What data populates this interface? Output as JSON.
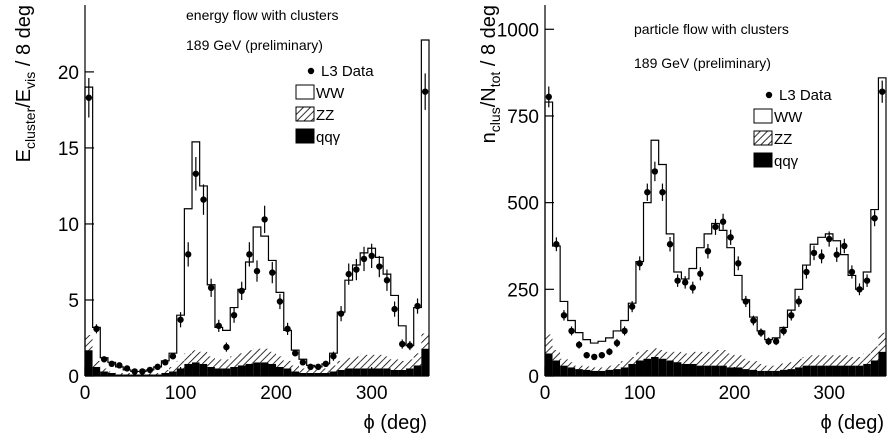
{
  "chart_data": [
    {
      "type": "histogram",
      "annotations": [
        "energy flow with clusters",
        "189 GeV (preliminary)"
      ],
      "ylabel": [
        "E",
        "cluster",
        "/E",
        "vis",
        " / 8 deg"
      ],
      "xlabel": "ϕ (deg)",
      "xlim": [
        0,
        360
      ],
      "xticks": [
        0,
        100,
        200,
        300
      ],
      "ylim": [
        0,
        24.4
      ],
      "yticks": [
        0,
        5,
        10,
        15,
        20
      ],
      "bins": [
        0,
        8,
        16,
        24,
        32,
        40,
        48,
        56,
        64,
        72,
        80,
        88,
        96,
        104,
        112,
        120,
        128,
        136,
        144,
        152,
        160,
        168,
        176,
        184,
        192,
        200,
        208,
        216,
        224,
        232,
        240,
        248,
        256,
        264,
        272,
        280,
        288,
        296,
        304,
        312,
        320,
        328,
        336,
        344,
        352,
        360
      ],
      "series": [
        {
          "name": "L3 Data",
          "style": "points",
          "color": "#000000",
          "values": [
            18.3,
            3.1,
            1.1,
            0.8,
            0.7,
            0.5,
            0.3,
            0.3,
            0.4,
            0.6,
            0.9,
            1.3,
            3.7,
            8.0,
            13.3,
            11.6,
            5.8,
            3.3,
            1.9,
            4.0,
            5.6,
            8.0,
            6.9,
            10.3,
            6.8,
            4.9,
            3.1,
            1.5,
            0.9,
            0.6,
            0.6,
            0.8,
            1.3,
            4.1,
            6.7,
            7.0,
            7.7,
            7.9,
            7.2,
            6.3,
            4.4,
            2.1,
            2.0,
            4.6,
            18.7
          ],
          "errors": [
            1.3,
            0.3,
            0.15,
            0.12,
            0.1,
            0.1,
            0.08,
            0.08,
            0.08,
            0.1,
            0.15,
            0.2,
            0.5,
            0.8,
            1.1,
            1.0,
            0.6,
            0.4,
            0.3,
            0.5,
            0.6,
            0.8,
            0.7,
            0.9,
            0.7,
            0.5,
            0.4,
            0.2,
            0.15,
            0.1,
            0.1,
            0.15,
            0.3,
            0.5,
            0.7,
            0.7,
            0.8,
            0.8,
            0.7,
            0.7,
            0.5,
            0.3,
            0.3,
            0.5,
            1.2
          ]
        },
        {
          "name": "WW",
          "style": "outline",
          "color": "#ffffff",
          "values": [
            16.3,
            2.2,
            0.7,
            0.6,
            0.4,
            0.2,
            0.1,
            0.1,
            0.2,
            0.4,
            0.6,
            0.9,
            3.0,
            9.5,
            13.7,
            10.9,
            4.7,
            2.1,
            1.9,
            3.2,
            4.2,
            5.8,
            8.0,
            7.4,
            6.0,
            4.2,
            2.0,
            1.0,
            0.6,
            0.3,
            0.2,
            0.3,
            0.8,
            3.2,
            5.1,
            6.0,
            6.7,
            7.0,
            6.4,
            5.4,
            4.2,
            2.3,
            0.9,
            3.0,
            19.3
          ]
        },
        {
          "name": "ZZ",
          "style": "hatch",
          "color": "#000000",
          "values": [
            1.0,
            0.4,
            0.2,
            0.1,
            0.1,
            0.1,
            0.1,
            0.1,
            0.1,
            0.1,
            0.2,
            0.3,
            0.5,
            0.7,
            0.8,
            0.8,
            0.7,
            0.6,
            0.6,
            0.7,
            0.8,
            0.9,
            0.9,
            0.9,
            0.8,
            0.7,
            0.5,
            0.4,
            0.3,
            0.2,
            0.2,
            0.3,
            0.4,
            0.6,
            0.7,
            0.8,
            0.9,
            0.9,
            0.9,
            0.8,
            0.7,
            0.6,
            0.6,
            0.8,
            1.0
          ]
        },
        {
          "name": "qqγ",
          "style": "solid",
          "color": "#000000",
          "values": [
            1.7,
            0.6,
            0.3,
            0.2,
            0.1,
            0.1,
            0.1,
            0.1,
            0.1,
            0.1,
            0.2,
            0.3,
            0.5,
            0.8,
            0.9,
            0.8,
            0.6,
            0.5,
            0.5,
            0.6,
            0.7,
            0.8,
            0.9,
            0.9,
            0.8,
            0.6,
            0.5,
            0.3,
            0.2,
            0.2,
            0.2,
            0.2,
            0.3,
            0.4,
            0.5,
            0.5,
            0.5,
            0.5,
            0.5,
            0.5,
            0.4,
            0.4,
            0.5,
            0.7,
            1.8
          ]
        }
      ]
    },
    {
      "type": "histogram",
      "annotations": [
        "particle flow with clusters",
        "189 GeV (preliminary)"
      ],
      "ylabel": [
        "n",
        "clus",
        "/N",
        "tot",
        " / 8 deg"
      ],
      "xlabel": "ϕ (deg)",
      "xlim": [
        0,
        360
      ],
      "xticks": [
        0,
        100,
        200,
        300
      ],
      "ylim": [
        0,
        1070
      ],
      "yticks": [
        0,
        250,
        500,
        750,
        1000
      ],
      "bins": [
        0,
        8,
        16,
        24,
        32,
        40,
        48,
        56,
        64,
        72,
        80,
        88,
        96,
        104,
        112,
        120,
        128,
        136,
        144,
        152,
        160,
        168,
        176,
        184,
        192,
        200,
        208,
        216,
        224,
        232,
        240,
        248,
        256,
        264,
        272,
        280,
        288,
        296,
        304,
        312,
        320,
        328,
        336,
        344,
        352,
        360
      ],
      "series": [
        {
          "name": "L3 Data",
          "style": "points",
          "color": "#000000",
          "values": [
            805,
            380,
            175,
            130,
            90,
            60,
            55,
            60,
            70,
            95,
            130,
            200,
            325,
            530,
            590,
            530,
            380,
            275,
            270,
            255,
            295,
            360,
            430,
            445,
            400,
            325,
            215,
            160,
            125,
            100,
            100,
            130,
            175,
            215,
            300,
            355,
            345,
            395,
            350,
            375,
            300,
            250,
            275,
            455,
            820
          ],
          "errors": [
            30,
            20,
            15,
            13,
            11,
            9,
            9,
            9,
            10,
            12,
            13,
            16,
            20,
            25,
            28,
            25,
            21,
            18,
            18,
            17,
            19,
            21,
            23,
            23,
            22,
            20,
            16,
            14,
            12,
            11,
            11,
            13,
            15,
            16,
            19,
            21,
            20,
            22,
            21,
            21,
            19,
            17,
            18,
            23,
            32
          ]
        },
        {
          "name": "WW",
          "style": "outline",
          "color": "#ffffff",
          "values": [
            670,
            300,
            165,
            120,
            95,
            77,
            70,
            75,
            80,
            95,
            117,
            155,
            260,
            425,
            600,
            535,
            340,
            230,
            215,
            240,
            300,
            340,
            365,
            345,
            305,
            230,
            170,
            127,
            95,
            75,
            80,
            104,
            150,
            200,
            265,
            320,
            340,
            350,
            330,
            290,
            235,
            195,
            235,
            395,
            735
          ]
        },
        {
          "name": "ZZ",
          "style": "hatch",
          "color": "#000000",
          "values": [
            55,
            30,
            20,
            15,
            10,
            10,
            10,
            10,
            12,
            15,
            18,
            20,
            25,
            25,
            25,
            25,
            25,
            30,
            30,
            35,
            40,
            40,
            45,
            45,
            40,
            35,
            30,
            25,
            20,
            15,
            15,
            18,
            20,
            25,
            25,
            30,
            30,
            30,
            30,
            30,
            25,
            25,
            30,
            40,
            55
          ]
        },
        {
          "name": "qqγ",
          "style": "solid",
          "color": "#000000",
          "values": [
            65,
            45,
            30,
            25,
            20,
            18,
            15,
            15,
            18,
            20,
            25,
            35,
            45,
            50,
            55,
            50,
            45,
            40,
            35,
            35,
            30,
            30,
            30,
            30,
            25,
            25,
            20,
            18,
            15,
            15,
            15,
            18,
            20,
            25,
            30,
            30,
            30,
            30,
            30,
            30,
            30,
            30,
            35,
            45,
            70
          ]
        }
      ]
    }
  ]
}
